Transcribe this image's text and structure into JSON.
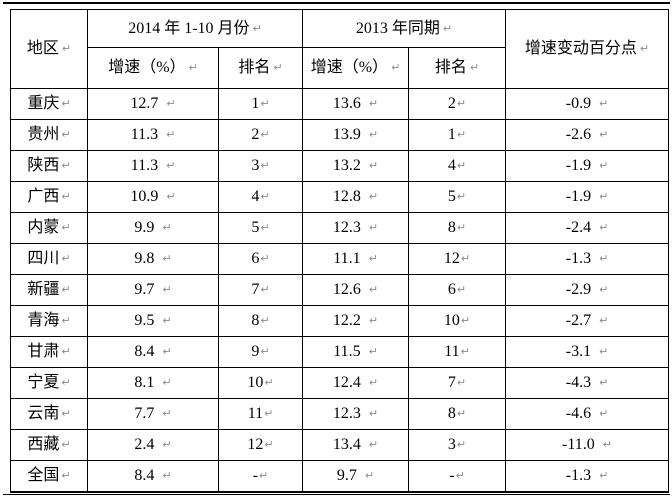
{
  "page": {
    "background": "#ffffff",
    "border_color": "#000000",
    "paragraph_mark_color": "#8c8c8c"
  },
  "table": {
    "paragraph_mark": "↵",
    "header": {
      "region": "地区",
      "period_2014": "2014 年 1-10 月份",
      "period_2013": "2013 年同期",
      "change": "增速变动百分点",
      "sub_rate_2014": "增速（%）",
      "sub_rank_2014": "排名",
      "sub_rate_2013": "增速（%）",
      "sub_rank_2013": "排名"
    },
    "rows": [
      {
        "region": "重庆",
        "rate_2014": "12.7",
        "rank_2014": "1",
        "rate_2013": "13.6",
        "rank_2013": "2",
        "change": "-0.9"
      },
      {
        "region": "贵州",
        "rate_2014": "11.3",
        "rank_2014": "2",
        "rate_2013": "13.9",
        "rank_2013": "1",
        "change": "-2.6"
      },
      {
        "region": "陕西",
        "rate_2014": "11.3",
        "rank_2014": "3",
        "rate_2013": "13.2",
        "rank_2013": "4",
        "change": "-1.9"
      },
      {
        "region": "广西",
        "rate_2014": "10.9",
        "rank_2014": "4",
        "rate_2013": "12.8",
        "rank_2013": "5",
        "change": "-1.9"
      },
      {
        "region": "内蒙",
        "rate_2014": "9.9",
        "rank_2014": "5",
        "rate_2013": "12.3",
        "rank_2013": "8",
        "change": "-2.4"
      },
      {
        "region": "四川",
        "rate_2014": "9.8",
        "rank_2014": "6",
        "rate_2013": "11.1",
        "rank_2013": "12",
        "change": "-1.3"
      },
      {
        "region": "新疆",
        "rate_2014": "9.7",
        "rank_2014": "7",
        "rate_2013": "12.6",
        "rank_2013": "6",
        "change": "-2.9"
      },
      {
        "region": "青海",
        "rate_2014": "9.5",
        "rank_2014": "8",
        "rate_2013": "12.2",
        "rank_2013": "10",
        "change": "-2.7"
      },
      {
        "region": "甘肃",
        "rate_2014": "8.4",
        "rank_2014": "9",
        "rate_2013": "11.5",
        "rank_2013": "11",
        "change": "-3.1"
      },
      {
        "region": "宁夏",
        "rate_2014": "8.1",
        "rank_2014": "10",
        "rate_2013": "12.4",
        "rank_2013": "7",
        "change": "-4.3"
      },
      {
        "region": "云南",
        "rate_2014": "7.7",
        "rank_2014": "11",
        "rate_2013": "12.3",
        "rank_2013": "8",
        "change": "-4.6"
      },
      {
        "region": "西藏",
        "rate_2014": "2.4",
        "rank_2014": "12",
        "rate_2013": "13.4",
        "rank_2013": "3",
        "change": "-11.0"
      },
      {
        "region": "全国",
        "rate_2014": "8.4",
        "rank_2014": "-",
        "rate_2013": "9.7",
        "rank_2013": "-",
        "change": "-1.3"
      }
    ]
  }
}
